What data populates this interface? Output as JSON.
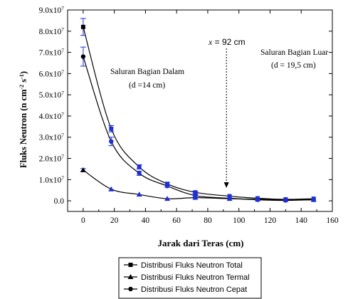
{
  "chart_data": {
    "type": "line",
    "xlabel": "Jarak dari Teras (cm)",
    "ylabel_main": "Fluks Neutron (n cm",
    "ylabel_sup1": "-2",
    "ylabel_mid": " s",
    "ylabel_sup2": "-1",
    "ylabel_end": ")",
    "xlim": [
      -10,
      160
    ],
    "ylim": [
      -5000000,
      90000000
    ],
    "x_ticks": [
      0,
      20,
      40,
      60,
      80,
      100,
      120,
      140,
      160
    ],
    "y_ticks": [
      {
        "value": 90000000,
        "mant": "9.0x10",
        "exp": "7"
      },
      {
        "value": 80000000,
        "mant": "8.0x10",
        "exp": "7"
      },
      {
        "value": 70000000,
        "mant": "7.0x10",
        "exp": "7"
      },
      {
        "value": 60000000,
        "mant": "6.0x10",
        "exp": "7"
      },
      {
        "value": 50000000,
        "mant": "5.0x10",
        "exp": "7"
      },
      {
        "value": 40000000,
        "mant": "4.0x10",
        "exp": "7"
      },
      {
        "value": 30000000,
        "mant": "3.0x10",
        "exp": "7"
      },
      {
        "value": 20000000,
        "mant": "2.0x10",
        "exp": "7"
      },
      {
        "value": 10000000,
        "mant": "1.0x10",
        "exp": "7"
      },
      {
        "value": 0,
        "mant": "0.0",
        "exp": ""
      }
    ],
    "series": [
      {
        "name": "Distribusi Fluks Neutron Total",
        "marker": "square",
        "x": [
          0,
          18,
          36,
          54,
          72,
          94,
          112,
          130,
          148
        ],
        "y": [
          82000000,
          34000000,
          16000000,
          8000000,
          4000000,
          2200000,
          1200000,
          700000,
          1000000
        ],
        "err": [
          4000000,
          1500000,
          1000000,
          700000,
          500000,
          300000,
          300000,
          200000,
          200000
        ]
      },
      {
        "name": "Distribusi Fluks Neutron Termal",
        "marker": "triangle",
        "x": [
          0,
          18,
          36,
          54,
          72,
          94,
          112,
          130,
          148
        ],
        "y": [
          14500000,
          5500000,
          3000000,
          1000000,
          1500000,
          1000000,
          700000,
          500000,
          500000
        ],
        "err": [
          700000,
          300000,
          200000,
          100000,
          100000,
          100000,
          100000,
          100000,
          100000
        ]
      },
      {
        "name": "Distribusi Fluks Neutron Cepat",
        "marker": "circle",
        "x": [
          0,
          18,
          36,
          54,
          72,
          94,
          112,
          130,
          148
        ],
        "y": [
          68000000,
          28000000,
          13000000,
          7000000,
          2500000,
          1200000,
          500000,
          200000,
          500000
        ],
        "err": [
          4500000,
          2000000,
          1000000,
          600000,
          400000,
          300000,
          200000,
          100000,
          100000
        ]
      }
    ],
    "annotations": {
      "inner_title": "Saluran Bagian Dalam",
      "inner_dim": "(d =14 cm)",
      "outer_title": "Saluran Bagian Luar",
      "outer_dim": "(d = 19,5 cm)",
      "marker_italic": "x",
      "marker_text": " = 92 cm",
      "marker_x": 92
    },
    "legend_position": "bottom"
  }
}
